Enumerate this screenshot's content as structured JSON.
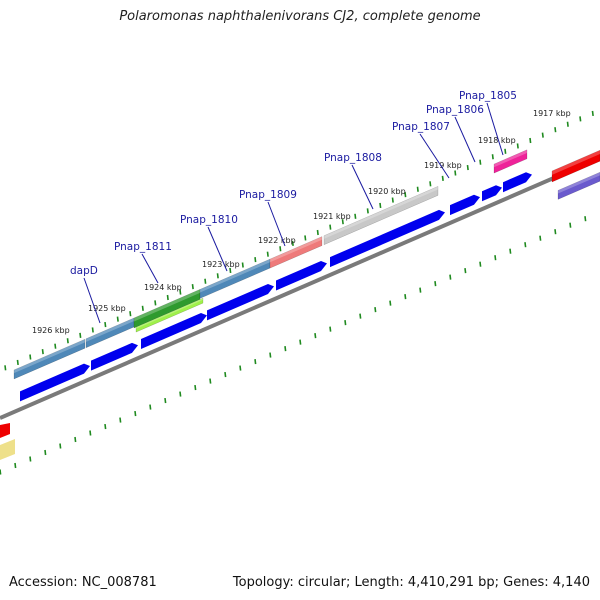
{
  "title": "Polaromonas naphthalenivorans CJ2, complete genome",
  "footer": {
    "accession": "Accession: NC_008781",
    "stats": "Topology: circular; Length: 4,410,291 bp; Genes: 4,140"
  },
  "colors": {
    "cds_blue": "#0000ee",
    "backbone_gray": "#7a7a7a",
    "tick_green": "#1f8a1f",
    "steelblue": "#4f88b8",
    "green": "#2e9a2e",
    "lightgreen": "#9ff04a",
    "salmon": "#ee7a7a",
    "silver": "#c8c8c8",
    "magenta": "#ee2299",
    "red": "#ee0000",
    "slateblue": "#6a5acd",
    "khaki": "#eee08a",
    "label_blue": "#1a1aa0"
  },
  "ticks": [
    {
      "label": "1926 kbp",
      "kbp": 1926
    },
    {
      "label": "1925 kbp",
      "kbp": 1925
    },
    {
      "label": "1924 kbp",
      "kbp": 1924
    },
    {
      "label": "1923 kbp",
      "kbp": 1923
    },
    {
      "label": "1922 kbp",
      "kbp": 1922
    },
    {
      "label": "1921 kbp",
      "kbp": 1921
    },
    {
      "label": "1920 kbp",
      "kbp": 1920
    },
    {
      "label": "1919 kbp",
      "kbp": 1919
    },
    {
      "label": "1918 kbp",
      "kbp": 1918
    },
    {
      "label": "1917 kbp",
      "kbp": 1917
    }
  ],
  "genes": [
    {
      "name": "dapD"
    },
    {
      "name": "Pnap_1811"
    },
    {
      "name": "Pnap_1810"
    },
    {
      "name": "Pnap_1809"
    },
    {
      "name": "Pnap_1808"
    },
    {
      "name": "Pnap_1807"
    },
    {
      "name": "Pnap_1806"
    },
    {
      "name": "Pnap_1805"
    }
  ]
}
